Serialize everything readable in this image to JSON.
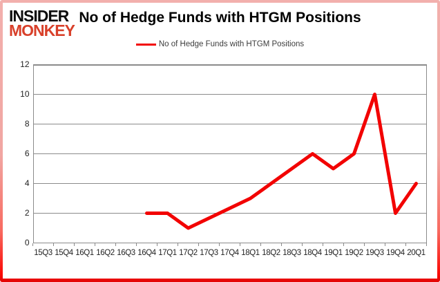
{
  "brand": {
    "line1": "INSIDER",
    "line2": "MONKEY"
  },
  "header": {
    "title": "No of Hedge Funds with HTGM Positions"
  },
  "legend": {
    "label": "No of Hedge Funds with HTGM Positions"
  },
  "colors": {
    "series_red": "#f20202",
    "grid_gray": "#8a8a8a",
    "brand_black": "#0d0d0d",
    "brand_red": "#d8402a",
    "frame_pink": "#f1a6a2",
    "frame_red": "#fb0b07"
  },
  "chart_data": {
    "type": "line",
    "title": "No of Hedge Funds with HTGM Positions",
    "categories": [
      "15Q3",
      "15Q4",
      "16Q1",
      "16Q2",
      "16Q3",
      "16Q4",
      "17Q1",
      "17Q2",
      "17Q3",
      "17Q4",
      "18Q1",
      "18Q2",
      "18Q3",
      "18Q4",
      "19Q1",
      "19Q2",
      "19Q3",
      "19Q4",
      "20Q1"
    ],
    "series": [
      {
        "name": "No of Hedge Funds with HTGM Positions",
        "color": "#f20202",
        "values": [
          null,
          null,
          null,
          null,
          null,
          2,
          2,
          1,
          null,
          null,
          3,
          4,
          5,
          6,
          5,
          6,
          10,
          2,
          4
        ]
      }
    ],
    "ylabel": "",
    "xlabel": "",
    "ylim": [
      0,
      12
    ],
    "yticks": [
      0,
      2,
      4,
      6,
      8,
      10,
      12
    ],
    "grid": "horizontal",
    "legend_position": "top-center"
  }
}
